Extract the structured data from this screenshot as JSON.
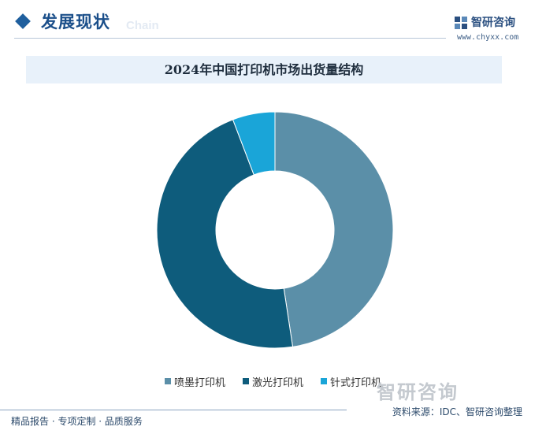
{
  "header": {
    "section_title": "发展现状",
    "section_ghost": "Chain",
    "brand_name": "智研咨询",
    "brand_url": "www.chyxx.com"
  },
  "watermark": "智研咨询",
  "footer": {
    "left": "精品报告 · 专项定制 · 品质服务",
    "source": "资料来源：IDC、智研咨询整理"
  },
  "colors": {
    "inkjet": "#5b8fa8",
    "laser": "#0e5c7c",
    "dot_matrix": "#1aa5d8"
  },
  "chart_data": {
    "type": "pie",
    "subtype": "donut",
    "title": "2024年中国打印机市场出货量结构",
    "categories": [
      "喷墨打印机",
      "激光打印机",
      "针式打印机"
    ],
    "values": [
      47.6,
      46.6,
      5.8
    ],
    "unit": "%",
    "legend_position": "bottom"
  }
}
